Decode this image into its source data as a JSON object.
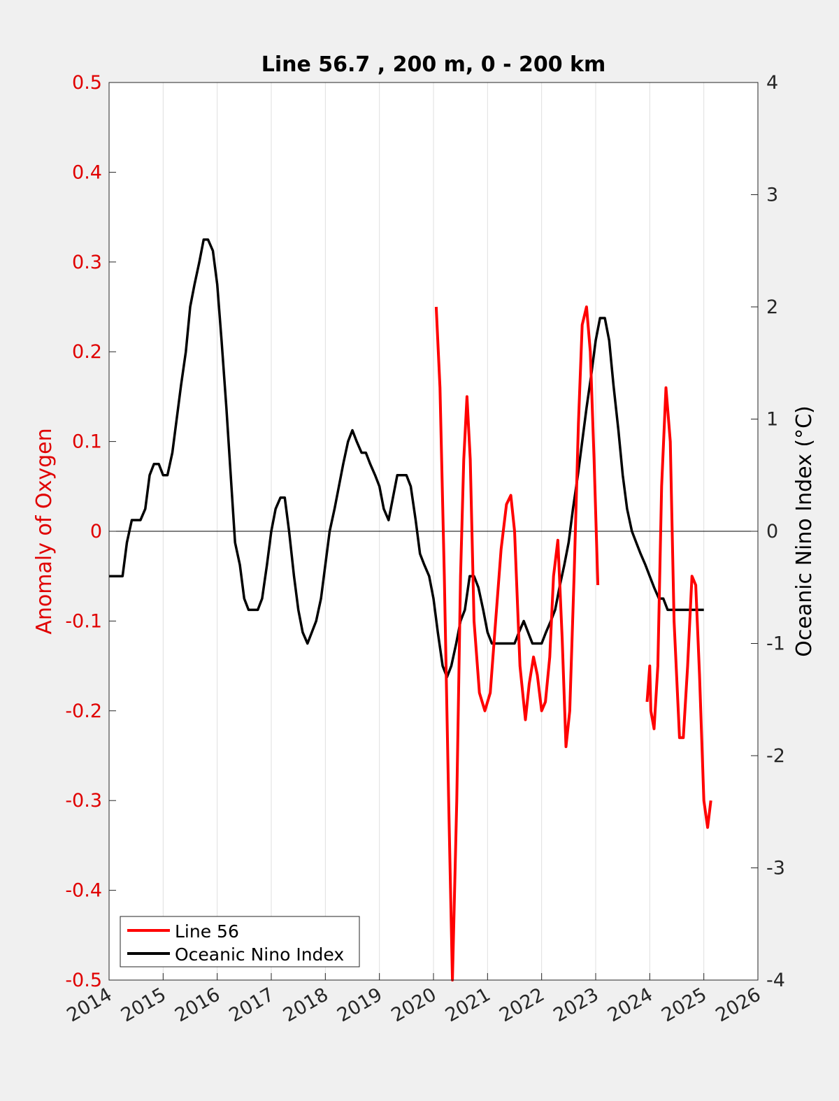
{
  "chart_data": {
    "type": "line",
    "title": "Line 56.7 , 200 m, 0 - 200 km",
    "xlabel": "",
    "ylabel_left": "Anomaly of Oxygen",
    "ylabel_right": "Oceanic Nino Index (°C)",
    "xlim": [
      2014,
      2026
    ],
    "ylim_left": [
      -0.5,
      0.5
    ],
    "ylim_right": [
      -4,
      4
    ],
    "x_ticks": [
      "2014",
      "2015",
      "2016",
      "2017",
      "2018",
      "2019",
      "2020",
      "2021",
      "2022",
      "2023",
      "2024",
      "2025",
      "2026"
    ],
    "y_left_ticks": [
      "0.5",
      "0.4",
      "0.3",
      "0.2",
      "0.1",
      "0",
      "-0.1",
      "-0.2",
      "-0.3",
      "-0.4",
      "-0.5"
    ],
    "y_right_ticks": [
      "4",
      "3",
      "2",
      "1",
      "0",
      "-1",
      "-2",
      "-3",
      "-4"
    ],
    "grid": "vertical",
    "legend_position": "bottom-left",
    "colors": {
      "line56": "#ff0000",
      "oni": "#000000",
      "left_axis": "#e00000",
      "background": "#f0f0f0",
      "plot_background": "#ffffff"
    },
    "series": [
      {
        "name": "Line 56",
        "axis": "left",
        "segments": [
          {
            "x": [
              2020.05,
              2020.12,
              2020.2,
              2020.28,
              2020.35,
              2020.43,
              2020.5,
              2020.56,
              2020.62,
              2020.68,
              2020.75,
              2020.85,
              2020.95,
              2021.05,
              2021.15,
              2021.25,
              2021.35,
              2021.43,
              2021.5,
              2021.6,
              2021.7,
              2021.77,
              2021.85,
              2021.92,
              2022.0,
              2022.07,
              2022.15,
              2022.22,
              2022.3,
              2022.38,
              2022.45,
              2022.52,
              2022.6,
              2022.68,
              2022.75,
              2022.83,
              2022.9,
              2022.97,
              2023.04
            ],
            "y": [
              0.25,
              0.16,
              -0.05,
              -0.3,
              -0.5,
              -0.3,
              -0.05,
              0.08,
              0.15,
              0.08,
              -0.1,
              -0.18,
              -0.2,
              -0.18,
              -0.1,
              -0.02,
              0.03,
              0.04,
              0.0,
              -0.15,
              -0.21,
              -0.17,
              -0.14,
              -0.16,
              -0.2,
              -0.19,
              -0.14,
              -0.05,
              -0.01,
              -0.12,
              -0.24,
              -0.2,
              -0.05,
              0.12,
              0.23,
              0.25,
              0.2,
              0.08,
              -0.06
            ]
          },
          {
            "x": [
              2023.95,
              2024.0,
              2024.02,
              2024.08,
              2024.15,
              2024.22,
              2024.3,
              2024.38,
              2024.45,
              2024.55,
              2024.62,
              2024.7,
              2024.78,
              2024.85,
              2024.92,
              2025.0,
              2025.07,
              2025.13
            ],
            "y": [
              -0.19,
              -0.15,
              -0.2,
              -0.22,
              -0.15,
              0.05,
              0.16,
              0.1,
              -0.1,
              -0.23,
              -0.23,
              -0.15,
              -0.05,
              -0.06,
              -0.16,
              -0.3,
              -0.33,
              -0.3
            ]
          }
        ]
      },
      {
        "name": "Oceanic Nino Index",
        "axis": "right",
        "x": [
          2014.0,
          2014.08,
          2014.17,
          2014.25,
          2014.33,
          2014.42,
          2014.5,
          2014.58,
          2014.67,
          2014.75,
          2014.83,
          2014.92,
          2015.0,
          2015.08,
          2015.17,
          2015.25,
          2015.33,
          2015.42,
          2015.5,
          2015.58,
          2015.67,
          2015.75,
          2015.83,
          2015.92,
          2016.0,
          2016.08,
          2016.17,
          2016.25,
          2016.33,
          2016.42,
          2016.5,
          2016.58,
          2016.67,
          2016.75,
          2016.83,
          2016.92,
          2017.0,
          2017.08,
          2017.17,
          2017.25,
          2017.33,
          2017.42,
          2017.5,
          2017.58,
          2017.67,
          2017.75,
          2017.83,
          2017.92,
          2018.0,
          2018.08,
          2018.17,
          2018.25,
          2018.33,
          2018.42,
          2018.5,
          2018.58,
          2018.67,
          2018.75,
          2018.83,
          2018.92,
          2019.0,
          2019.08,
          2019.17,
          2019.25,
          2019.33,
          2019.42,
          2019.5,
          2019.58,
          2019.67,
          2019.75,
          2019.83,
          2019.92,
          2020.0,
          2020.08,
          2020.17,
          2020.25,
          2020.33,
          2020.42,
          2020.5,
          2020.58,
          2020.67,
          2020.75,
          2020.83,
          2020.92,
          2021.0,
          2021.08,
          2021.17,
          2021.25,
          2021.33,
          2021.42,
          2021.5,
          2021.58,
          2021.67,
          2021.75,
          2021.83,
          2021.92,
          2022.0,
          2022.08,
          2022.17,
          2022.25,
          2022.33,
          2022.42,
          2022.5,
          2022.58,
          2022.67,
          2022.75,
          2022.83,
          2022.92,
          2023.0,
          2023.08,
          2023.17,
          2023.25,
          2023.33,
          2023.42,
          2023.5,
          2023.58,
          2023.67,
          2023.75,
          2023.83,
          2023.92,
          2024.0,
          2024.08,
          2024.17,
          2024.25,
          2024.33,
          2024.42,
          2024.5,
          2024.58,
          2024.67,
          2024.75,
          2024.83,
          2024.92,
          2025.0
        ],
        "y": [
          -0.4,
          -0.4,
          -0.4,
          -0.4,
          -0.1,
          0.1,
          0.1,
          0.1,
          0.2,
          0.5,
          0.6,
          0.6,
          0.5,
          0.5,
          0.7,
          1.0,
          1.3,
          1.6,
          2.0,
          2.2,
          2.4,
          2.6,
          2.6,
          2.5,
          2.2,
          1.7,
          1.1,
          0.5,
          -0.1,
          -0.3,
          -0.6,
          -0.7,
          -0.7,
          -0.7,
          -0.6,
          -0.3,
          0.0,
          0.2,
          0.3,
          0.3,
          0.0,
          -0.4,
          -0.7,
          -0.9,
          -1.0,
          -0.9,
          -0.8,
          -0.6,
          -0.3,
          0.0,
          0.2,
          0.4,
          0.6,
          0.8,
          0.9,
          0.8,
          0.7,
          0.7,
          0.6,
          0.5,
          0.4,
          0.2,
          0.1,
          0.3,
          0.5,
          0.5,
          0.5,
          0.4,
          0.1,
          -0.2,
          -0.3,
          -0.4,
          -0.6,
          -0.9,
          -1.2,
          -1.3,
          -1.2,
          -1.0,
          -0.8,
          -0.7,
          -0.4,
          -0.4,
          -0.5,
          -0.7,
          -0.9,
          -1.0,
          -1.0,
          -1.0,
          -1.0,
          -1.0,
          -1.0,
          -0.9,
          -0.8,
          -0.9,
          -1.0,
          -1.0,
          -1.0,
          -0.9,
          -0.8,
          -0.7,
          -0.5,
          -0.3,
          -0.1,
          0.2,
          0.5,
          0.8,
          1.1,
          1.4,
          1.7,
          1.9,
          1.9,
          1.7,
          1.3,
          0.9,
          0.5,
          0.2,
          0.0,
          -0.1,
          -0.2,
          -0.3,
          -0.4,
          -0.5,
          -0.6,
          -0.6,
          -0.7,
          -0.7,
          -0.7,
          -0.7,
          -0.7,
          -0.7,
          -0.7,
          -0.7,
          -0.7
        ]
      }
    ]
  }
}
